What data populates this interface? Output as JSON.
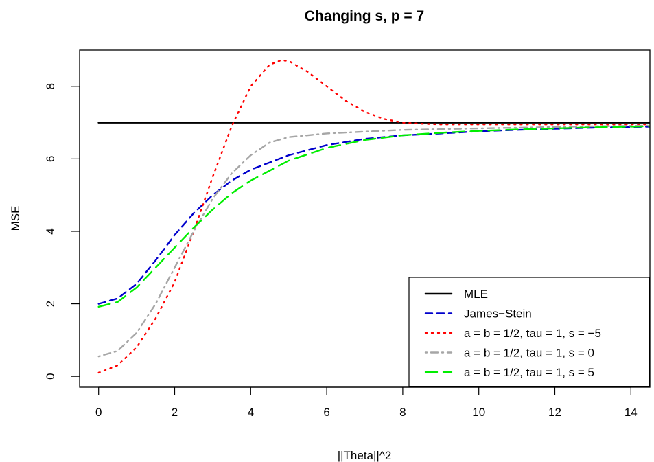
{
  "chart_data": {
    "type": "line",
    "title": "Changing s, p = 7",
    "xlabel": "||Theta||^2",
    "ylabel": "MSE",
    "xlim": [
      -0.5,
      14.5
    ],
    "ylim": [
      -0.3,
      9.0
    ],
    "x_ticks": [
      0,
      2,
      4,
      6,
      8,
      10,
      12,
      14
    ],
    "y_ticks": [
      0,
      2,
      4,
      6,
      8
    ],
    "x_tick_labels": [
      "0",
      "2",
      "4",
      "6",
      "8",
      "10",
      "12",
      "14"
    ],
    "y_tick_labels": [
      "0",
      "2",
      "4",
      "6",
      "8"
    ],
    "grid": false,
    "legend_position": "bottom-right",
    "series": [
      {
        "name": "MLE",
        "color": "#000000",
        "style": "solid",
        "x": [
          0,
          14.5
        ],
        "y": [
          7.0,
          7.0
        ]
      },
      {
        "name": "James−Stein",
        "color": "#0000cc",
        "style": "dashed",
        "x": [
          0,
          0.5,
          1,
          1.5,
          2,
          2.5,
          3,
          3.5,
          4,
          5,
          6,
          7,
          8,
          9,
          10,
          11,
          12,
          13,
          14,
          14.5
        ],
        "y": [
          2.0,
          2.15,
          2.55,
          3.2,
          3.9,
          4.5,
          5.0,
          5.4,
          5.7,
          6.1,
          6.38,
          6.55,
          6.65,
          6.7,
          6.76,
          6.8,
          6.83,
          6.86,
          6.88,
          6.89
        ]
      },
      {
        "name": "a = b = 1/2, tau = 1, s = −5",
        "color": "#ff0000",
        "style": "dotted",
        "x": [
          0,
          0.5,
          1,
          1.5,
          2,
          2.5,
          3,
          3.5,
          4,
          4.5,
          4.8,
          5,
          5.5,
          6,
          6.5,
          7,
          7.5,
          8,
          8.5,
          9,
          10,
          11,
          12,
          13,
          14,
          14.5
        ],
        "y": [
          0.1,
          0.3,
          0.8,
          1.6,
          2.6,
          4.0,
          5.5,
          6.9,
          8.0,
          8.6,
          8.72,
          8.7,
          8.4,
          8.0,
          7.6,
          7.3,
          7.1,
          7.0,
          6.97,
          6.95,
          6.95,
          6.95,
          6.95,
          6.95,
          6.95,
          6.95
        ]
      },
      {
        "name": "a = b = 1/2, tau = 1, s = 0",
        "color": "#a6a6a6",
        "style": "dotdash",
        "x": [
          0,
          0.5,
          1,
          1.5,
          2,
          2.5,
          3,
          3.5,
          4,
          4.5,
          5,
          6,
          7,
          8,
          9,
          10,
          11,
          12,
          13,
          14,
          14.5
        ],
        "y": [
          0.55,
          0.7,
          1.2,
          2.0,
          3.0,
          4.0,
          4.9,
          5.6,
          6.1,
          6.45,
          6.6,
          6.7,
          6.75,
          6.8,
          6.82,
          6.84,
          6.86,
          6.88,
          6.9,
          6.91,
          6.92
        ]
      },
      {
        "name": "a = b = 1/2, tau = 1, s = 5",
        "color": "#00ee00",
        "style": "longdash",
        "x": [
          0,
          0.5,
          1,
          1.5,
          2,
          2.5,
          3,
          3.5,
          4,
          5,
          6,
          7,
          8,
          9,
          10,
          11,
          12,
          13,
          14,
          14.5
        ],
        "y": [
          1.92,
          2.05,
          2.45,
          3.0,
          3.55,
          4.1,
          4.6,
          5.05,
          5.4,
          5.95,
          6.3,
          6.52,
          6.65,
          6.72,
          6.77,
          6.81,
          6.84,
          6.87,
          6.89,
          6.9
        ]
      }
    ]
  }
}
